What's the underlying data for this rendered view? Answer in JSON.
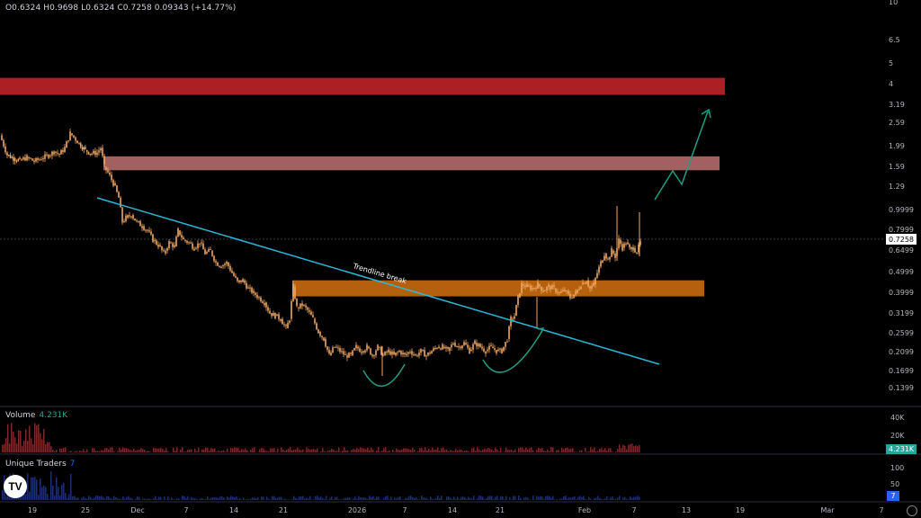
{
  "header": {
    "ohlc_text": "O0.6324 H0.9698 L0.6324 C0.7258 0.09343 (+14.77%)"
  },
  "panes": {
    "volume": {
      "label": "Volume",
      "value": "4.231K",
      "badge": "4.231K",
      "axis": [
        "40K",
        "20K"
      ]
    },
    "traders": {
      "label": "Unique Traders",
      "value": "7",
      "badge": "7",
      "axis": [
        "100",
        "50"
      ]
    }
  },
  "logo_text": "TV",
  "colors": {
    "background": "#000000",
    "candle": "#f0a860",
    "red_zone": "#c9252c",
    "pink_zone": "#d98080",
    "orange_zone": "#c86a10",
    "trendline": "#2bb8d8",
    "arrow": "#1f9e86",
    "price_tag_bg": "#ffffff",
    "volume_badge": "#26a69a",
    "traders_badge": "#2962ff"
  },
  "chart_data": {
    "type": "candlestick",
    "price_scale": "log",
    "current_price": 0.7258,
    "current_price_label": "0.7258",
    "y_tick_labels": [
      "10",
      "6.5",
      "5",
      "4",
      "3.19",
      "2.59",
      "1.99",
      "1.59",
      "1.29",
      "0.9999",
      "0.7999",
      "0.6499",
      "0.4999",
      "0.3999",
      "0.3199",
      "0.2599",
      "0.2099",
      "0.1699",
      "0.1399"
    ],
    "x_tick_labels": [
      "19",
      "25",
      "Dec",
      "7",
      "14",
      "21",
      "2026",
      "7",
      "14",
      "21",
      "Feb",
      "7",
      "13",
      "19",
      "Mar",
      "7"
    ],
    "annotations": [
      {
        "kind": "zone",
        "name": "red resistance",
        "from": 3.6,
        "to": 4.35
      },
      {
        "kind": "zone",
        "name": "pink resistance",
        "from": 1.56,
        "to": 1.82
      },
      {
        "kind": "zone",
        "name": "orange support",
        "from": 0.385,
        "to": 0.46
      },
      {
        "kind": "trendline",
        "label": "Trendline break"
      },
      {
        "kind": "arrow",
        "name": "projection arrow"
      },
      {
        "kind": "arc",
        "name": "bottom arc left"
      },
      {
        "kind": "arc",
        "name": "bottom arc right"
      }
    ],
    "price_path": [
      [
        0,
        2.3
      ],
      [
        8,
        1.85
      ],
      [
        15,
        1.78
      ],
      [
        22,
        1.74
      ],
      [
        30,
        1.8
      ],
      [
        38,
        1.72
      ],
      [
        46,
        1.78
      ],
      [
        54,
        1.84
      ],
      [
        60,
        1.92
      ],
      [
        66,
        1.86
      ],
      [
        72,
        2.0
      ],
      [
        78,
        2.35
      ],
      [
        82,
        2.25
      ],
      [
        88,
        2.1
      ],
      [
        95,
        1.95
      ],
      [
        102,
        1.88
      ],
      [
        108,
        1.9
      ],
      [
        112,
        2.0
      ],
      [
        116,
        1.62
      ],
      [
        120,
        1.52
      ],
      [
        126,
        1.35
      ],
      [
        132,
        1.15
      ],
      [
        136,
        0.88
      ],
      [
        140,
        0.92
      ],
      [
        146,
        0.95
      ],
      [
        152,
        0.88
      ],
      [
        158,
        0.84
      ],
      [
        164,
        0.8
      ],
      [
        170,
        0.72
      ],
      [
        176,
        0.68
      ],
      [
        182,
        0.62
      ],
      [
        188,
        0.7
      ],
      [
        194,
        0.67
      ],
      [
        198,
        0.8
      ],
      [
        204,
        0.72
      ],
      [
        210,
        0.7
      ],
      [
        216,
        0.66
      ],
      [
        222,
        0.7
      ],
      [
        228,
        0.62
      ],
      [
        234,
        0.64
      ],
      [
        240,
        0.56
      ],
      [
        246,
        0.54
      ],
      [
        252,
        0.56
      ],
      [
        258,
        0.5
      ],
      [
        264,
        0.45
      ],
      [
        270,
        0.46
      ],
      [
        276,
        0.42
      ],
      [
        282,
        0.4
      ],
      [
        288,
        0.38
      ],
      [
        294,
        0.36
      ],
      [
        300,
        0.32
      ],
      [
        306,
        0.31
      ],
      [
        312,
        0.3
      ],
      [
        318,
        0.27
      ],
      [
        322,
        0.3
      ],
      [
        326,
        0.43
      ],
      [
        330,
        0.34
      ],
      [
        336,
        0.35
      ],
      [
        342,
        0.33
      ],
      [
        348,
        0.3
      ],
      [
        354,
        0.26
      ],
      [
        360,
        0.24
      ],
      [
        366,
        0.2
      ],
      [
        372,
        0.22
      ],
      [
        378,
        0.21
      ],
      [
        384,
        0.2
      ],
      [
        390,
        0.2
      ],
      [
        396,
        0.22
      ],
      [
        402,
        0.21
      ],
      [
        408,
        0.22
      ],
      [
        414,
        0.2
      ],
      [
        420,
        0.22
      ],
      [
        426,
        0.2
      ],
      [
        432,
        0.21
      ],
      [
        438,
        0.2
      ],
      [
        444,
        0.21
      ],
      [
        450,
        0.2
      ],
      [
        456,
        0.21
      ],
      [
        462,
        0.2
      ],
      [
        468,
        0.21
      ],
      [
        474,
        0.2
      ],
      [
        480,
        0.21
      ],
      [
        486,
        0.22
      ],
      [
        492,
        0.22
      ],
      [
        498,
        0.21
      ],
      [
        504,
        0.23
      ],
      [
        510,
        0.22
      ],
      [
        516,
        0.23
      ],
      [
        522,
        0.21
      ],
      [
        528,
        0.23
      ],
      [
        534,
        0.22
      ],
      [
        540,
        0.21
      ],
      [
        546,
        0.22
      ],
      [
        552,
        0.21
      ],
      [
        558,
        0.21
      ],
      [
        564,
        0.24
      ],
      [
        568,
        0.3
      ],
      [
        572,
        0.31
      ],
      [
        576,
        0.38
      ],
      [
        580,
        0.44
      ],
      [
        586,
        0.43
      ],
      [
        592,
        0.42
      ],
      [
        598,
        0.44
      ],
      [
        604,
        0.41
      ],
      [
        610,
        0.43
      ],
      [
        616,
        0.42
      ],
      [
        622,
        0.4
      ],
      [
        628,
        0.41
      ],
      [
        634,
        0.38
      ],
      [
        640,
        0.4
      ],
      [
        646,
        0.44
      ],
      [
        652,
        0.46
      ],
      [
        656,
        0.42
      ],
      [
        660,
        0.44
      ],
      [
        664,
        0.5
      ],
      [
        668,
        0.56
      ],
      [
        672,
        0.62
      ],
      [
        676,
        0.58
      ],
      [
        680,
        0.64
      ],
      [
        684,
        0.6
      ],
      [
        688,
        0.72
      ],
      [
        692,
        0.66
      ],
      [
        696,
        0.7
      ],
      [
        700,
        0.65
      ],
      [
        704,
        0.66
      ],
      [
        708,
        0.63
      ],
      [
        712,
        0.7
      ]
    ],
    "volume_max": 40000,
    "traders_max": 100
  }
}
